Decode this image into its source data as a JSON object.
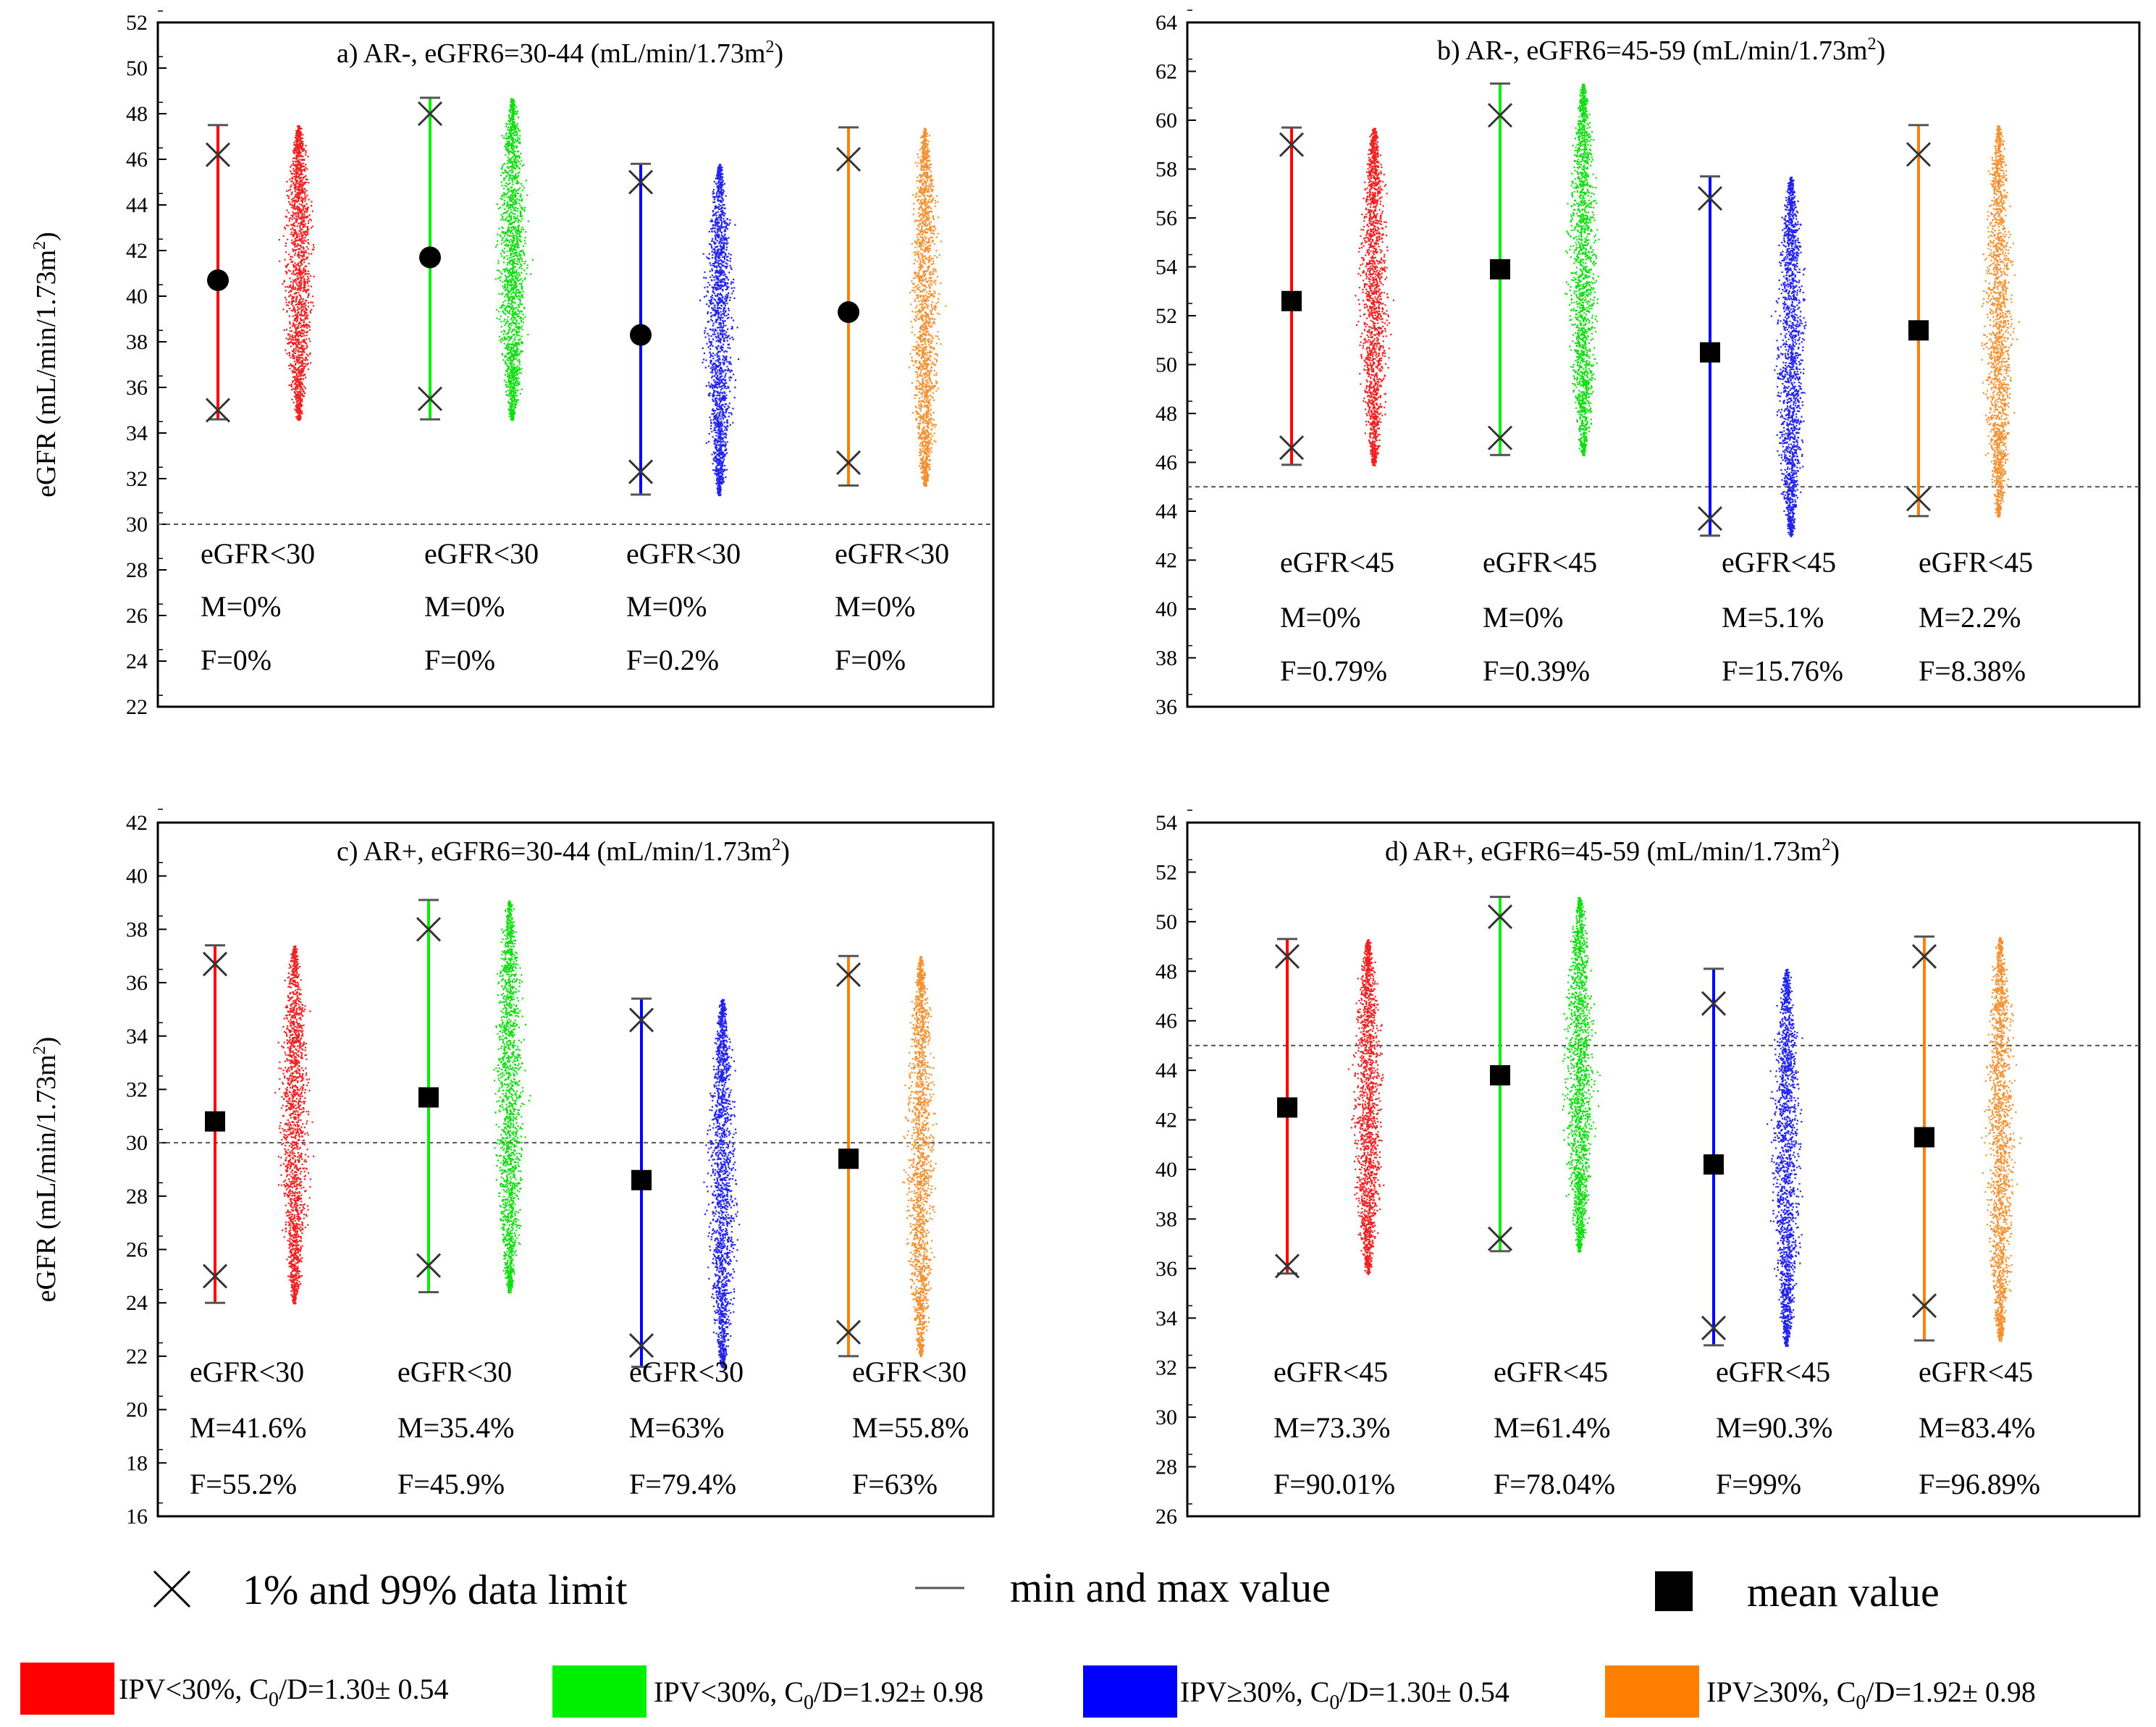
{
  "chart_data": [
    {
      "id": "a",
      "type": "scatter",
      "title": "a) AR-, eGFR6=30-44 (mL/min/1.73m",
      "title_sup": "2",
      "title_end": ")",
      "ylabel": "eGFR (mL/min/1.73m",
      "ylabel_sup": "2",
      "ylabel_end": ")",
      "ylim": [
        22,
        52
      ],
      "yticks": [
        22,
        24,
        26,
        28,
        30,
        32,
        34,
        36,
        38,
        40,
        42,
        44,
        46,
        48,
        50,
        52
      ],
      "threshold": 30,
      "marker": "circle",
      "series": [
        {
          "name": "IPV<30%, C0/D=1.30± 0.54",
          "mean": 40.7,
          "p1": 35.0,
          "p99": 46.2,
          "min": 34.6,
          "max": 47.5,
          "annotations": [
            "eGFR<30",
            "M=0%",
            "F=0%"
          ]
        },
        {
          "name": "IPV<30%, C0/D=1.92± 0.98",
          "mean": 41.7,
          "p1": 35.5,
          "p99": 48.0,
          "min": 34.6,
          "max": 48.7,
          "annotations": [
            "eGFR<30",
            "M=0%",
            "F=0%"
          ]
        },
        {
          "name": "IPV≥30%, C0/D=1.30± 0.54",
          "mean": 38.3,
          "p1": 32.3,
          "p99": 45.0,
          "min": 31.3,
          "max": 45.8,
          "annotations": [
            "eGFR<30",
            "M=0%",
            "F=0.2%"
          ]
        },
        {
          "name": "IPV≥30%, C0/D=1.92± 0.98",
          "mean": 39.3,
          "p1": 32.7,
          "p99": 46.0,
          "min": 31.7,
          "max": 47.4,
          "annotations": [
            "eGFR<30",
            "M=0%",
            "F=0%"
          ]
        }
      ]
    },
    {
      "id": "b",
      "type": "scatter",
      "title": "b) AR-, eGFR6=45-59 (mL/min/1.73m",
      "title_sup": "2",
      "title_end": ")",
      "ylabel": "",
      "ylim": [
        36,
        64
      ],
      "yticks": [
        36,
        38,
        40,
        42,
        44,
        46,
        48,
        50,
        52,
        54,
        56,
        58,
        60,
        62,
        64
      ],
      "threshold": 45,
      "marker": "square",
      "series": [
        {
          "name": "IPV<30%, C0/D=1.30± 0.54",
          "mean": 52.6,
          "p1": 46.6,
          "p99": 59.0,
          "min": 45.9,
          "max": 59.7,
          "annotations": [
            "eGFR<45",
            "M=0%",
            "F=0.79%"
          ]
        },
        {
          "name": "IPV<30%, C0/D=1.92± 0.98",
          "mean": 53.9,
          "p1": 47.0,
          "p99": 60.2,
          "min": 46.3,
          "max": 61.5,
          "annotations": [
            "eGFR<45",
            "M=0%",
            "F=0.39%"
          ]
        },
        {
          "name": "IPV≥30%, C0/D=1.30± 0.54",
          "mean": 50.5,
          "p1": 43.7,
          "p99": 56.8,
          "min": 43.0,
          "max": 57.7,
          "annotations": [
            "eGFR<45",
            "M=5.1%",
            "F=15.76%"
          ]
        },
        {
          "name": "IPV≥30%, C0/D=1.92± 0.98",
          "mean": 51.4,
          "p1": 44.5,
          "p99": 58.6,
          "min": 43.8,
          "max": 59.8,
          "annotations": [
            "eGFR<45",
            "M=2.2%",
            "F=8.38%"
          ]
        }
      ]
    },
    {
      "id": "c",
      "type": "scatter",
      "title": "c) AR+, eGFR6=30-44 (mL/min/1.73m",
      "title_sup": "2",
      "title_end": ")",
      "ylabel": "eGFR (mL/min/1.73m",
      "ylabel_sup": "2",
      "ylabel_end": ")",
      "ylim": [
        16,
        42
      ],
      "yticks": [
        16,
        18,
        20,
        22,
        24,
        26,
        28,
        30,
        32,
        34,
        36,
        38,
        40,
        42
      ],
      "threshold": 30,
      "marker": "square",
      "series": [
        {
          "name": "IPV<30%, C0/D=1.30± 0.54",
          "mean": 30.8,
          "p1": 25.0,
          "p99": 36.7,
          "min": 24.0,
          "max": 37.4,
          "annotations": [
            "eGFR<30",
            "M=41.6%",
            "F=55.2%"
          ]
        },
        {
          "name": "IPV<30%, C0/D=1.92± 0.98",
          "mean": 31.7,
          "p1": 25.4,
          "p99": 38.0,
          "min": 24.4,
          "max": 39.1,
          "annotations": [
            "eGFR<30",
            "M=35.4%",
            "F=45.9%"
          ]
        },
        {
          "name": "IPV≥30%, C0/D=1.30± 0.54",
          "mean": 28.6,
          "p1": 22.4,
          "p99": 34.6,
          "min": 21.6,
          "max": 35.4,
          "annotations": [
            "eGFR<30",
            "M=63%",
            "F=79.4%"
          ]
        },
        {
          "name": "IPV≥30%, C0/D=1.92± 0.98",
          "mean": 29.4,
          "p1": 22.9,
          "p99": 36.3,
          "min": 22.0,
          "max": 37.0,
          "annotations": [
            "eGFR<30",
            "M=55.8%",
            "F=63%"
          ]
        }
      ]
    },
    {
      "id": "d",
      "type": "scatter",
      "title": "d) AR+, eGFR6=45-59 (mL/min/1.73m",
      "title_sup": "2",
      "title_end": ")",
      "ylabel": "",
      "ylim": [
        26,
        54
      ],
      "yticks": [
        26,
        28,
        30,
        32,
        34,
        36,
        38,
        40,
        42,
        44,
        46,
        48,
        50,
        52,
        54
      ],
      "threshold": 45,
      "marker": "square",
      "series": [
        {
          "name": "IPV<30%, C0/D=1.30± 0.54",
          "mean": 42.5,
          "p1": 36.1,
          "p99": 48.6,
          "min": 35.8,
          "max": 49.3,
          "annotations": [
            "eGFR<45",
            "M=73.3%",
            "F=90.01%"
          ]
        },
        {
          "name": "IPV<30%, C0/D=1.92± 0.98",
          "mean": 43.8,
          "p1": 37.2,
          "p99": 50.2,
          "min": 36.7,
          "max": 51.0,
          "annotations": [
            "eGFR<45",
            "M=61.4%",
            "F=78.04%"
          ]
        },
        {
          "name": "IPV≥30%, C0/D=1.30± 0.54",
          "mean": 40.2,
          "p1": 33.6,
          "p99": 46.7,
          "min": 32.9,
          "max": 48.1,
          "annotations": [
            "eGFR<45",
            "M=90.3%",
            "F=99%"
          ]
        },
        {
          "name": "IPV≥30%, C0/D=1.92± 0.98",
          "mean": 41.3,
          "p1": 34.5,
          "p99": 48.6,
          "min": 33.1,
          "max": 49.4,
          "annotations": [
            "eGFR<45",
            "M=83.4%",
            "F=96.89%"
          ]
        }
      ]
    }
  ],
  "series_colors": [
    "#ff0000",
    "#00ee00",
    "#0000ff",
    "#ff8000"
  ],
  "legend": {
    "limit_label": "1% and 99% data limit",
    "minmax_label": "min and max value",
    "mean_label": "mean value"
  },
  "series_legend": [
    {
      "pre": "IPV<30%, C",
      "sub": "0",
      "post": "/D=1.30± 0.54"
    },
    {
      "pre": "IPV<30%, C",
      "sub": "0",
      "post": "/D=1.92± 0.98"
    },
    {
      "pre": "IPV≥30%, C",
      "sub": "0",
      "post": "/D=1.30± 0.54"
    },
    {
      "pre": "IPV≥30%, C",
      "sub": "0",
      "post": "/D=1.92± 0.98"
    }
  ]
}
